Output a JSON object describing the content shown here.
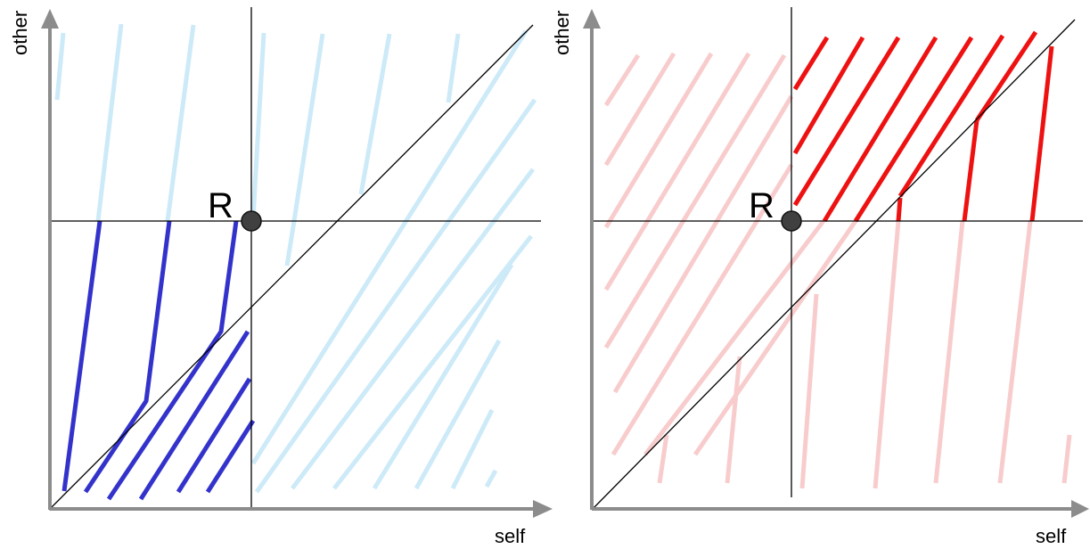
{
  "left_panel": {
    "y_label": "other",
    "x_label": "self",
    "point_label": "R",
    "light_color": "#cdeaf8",
    "bold_color": "#3333cc"
  },
  "right_panel": {
    "y_label": "other",
    "x_label": "self",
    "point_label": "R",
    "light_color": "#f8cccc",
    "bold_color": "#ee1111"
  },
  "axis_color": "#8c8c8c",
  "point_color": "#404040"
}
